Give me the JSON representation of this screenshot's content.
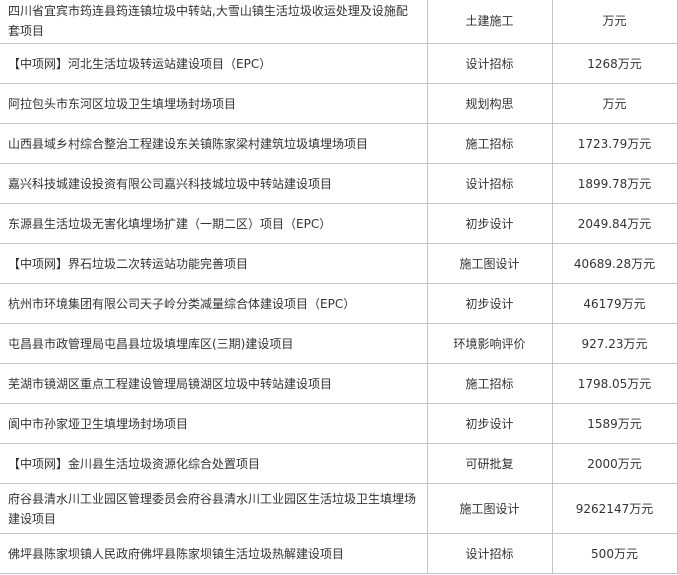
{
  "rows": [
    {
      "name": "四川省宜宾市筠连县筠连镇垃圾中转站,大雪山镇生活垃圾收运处理及设施配套项目",
      "stage": "土建施工",
      "amount": "万元"
    },
    {
      "name": "【中项网】河北生活垃圾转运站建设项目（EPC）",
      "stage": "设计招标",
      "amount": "1268万元"
    },
    {
      "name": "阿拉包头市东河区垃圾卫生填埋场封场项目",
      "stage": "规划构思",
      "amount": "万元"
    },
    {
      "name": "山西县域乡村综合整治工程建设东关镇陈家梁村建筑垃圾填埋场项目",
      "stage": "施工招标",
      "amount": "1723.79万元"
    },
    {
      "name": "嘉兴科技城建设投资有限公司嘉兴科技城垃圾中转站建设项目",
      "stage": "设计招标",
      "amount": "1899.78万元"
    },
    {
      "name": "东源县生活垃圾无害化填埋场扩建（一期二区）项目（EPC）",
      "stage": "初步设计",
      "amount": "2049.84万元"
    },
    {
      "name": "【中项网】界石垃圾二次转运站功能完善项目",
      "stage": "施工图设计",
      "amount": "40689.28万元"
    },
    {
      "name": "杭州市环境集团有限公司天子岭分类减量综合体建设项目（EPC）",
      "stage": "初步设计",
      "amount": "46179万元"
    },
    {
      "name": "屯昌县市政管理局屯昌县垃圾填埋库区(三期)建设项目",
      "stage": "环境影响评价",
      "amount": "927.23万元"
    },
    {
      "name": "芜湖市镜湖区重点工程建设管理局镜湖区垃圾中转站建设项目",
      "stage": "施工招标",
      "amount": "1798.05万元"
    },
    {
      "name": "阆中市孙家垭卫生填埋场封场项目",
      "stage": "初步设计",
      "amount": "1589万元"
    },
    {
      "name": "【中项网】金川县生活垃圾资源化综合处置项目",
      "stage": "可研批复",
      "amount": "2000万元"
    },
    {
      "name": "府谷县清水川工业园区管理委员会府谷县清水川工业园区生活垃圾卫生填埋场建设项目",
      "stage": "施工图设计",
      "amount": "9262147万元"
    },
    {
      "name": "佛坪县陈家坝镇人民政府佛坪县陈家坝镇生活垃圾热解建设项目",
      "stage": "设计招标",
      "amount": "500万元"
    }
  ]
}
